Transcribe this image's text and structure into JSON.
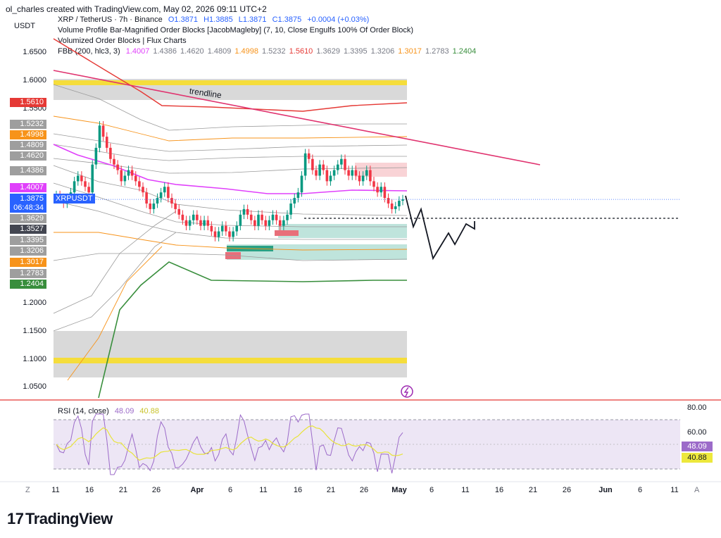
{
  "header": "ol_charles created with TradingView.com, May 02, 2026 09:11 UTC+2",
  "currency": "USDT",
  "legend": {
    "symbol": "XRP / TetherUS · 7h · Binance",
    "o": "O1.3871",
    "h": "H1.3885",
    "l": "L1.3871",
    "c": "C1.3875",
    "change": "+0.0004 (+0.03%)",
    "line2": "Volume Profile Bar-Magnified Order Blocks [JacobMagleby] (7, 10, Close Engulfs 100% Of Order Block)",
    "line3": "Volumized Order Blocks | Flux Charts",
    "fbb_label": "FBB (200, hlc3, 3)",
    "fbb_values": [
      {
        "v": "1.4007",
        "c": "#e040fb"
      },
      {
        "v": "1.4386",
        "c": "#787b86"
      },
      {
        "v": "1.4620",
        "c": "#787b86"
      },
      {
        "v": "1.4809",
        "c": "#787b86"
      },
      {
        "v": "1.4998",
        "c": "#f7931a"
      },
      {
        "v": "1.5232",
        "c": "#787b86"
      },
      {
        "v": "1.5610",
        "c": "#e53935"
      },
      {
        "v": "1.3629",
        "c": "#787b86"
      },
      {
        "v": "1.3395",
        "c": "#787b86"
      },
      {
        "v": "1.3206",
        "c": "#787b86"
      },
      {
        "v": "1.3017",
        "c": "#f7931a"
      },
      {
        "v": "1.2783",
        "c": "#787b86"
      },
      {
        "v": "1.2404",
        "c": "#388e3c"
      }
    ]
  },
  "y_axis_labels": [
    "1.6500",
    "1.6000",
    "1.5500",
    "1.2000",
    "1.1500",
    "1.1000",
    "1.0500"
  ],
  "price_tags": [
    {
      "v": "1.5610",
      "bg": "#e53935",
      "fg": "#ffffff"
    },
    {
      "v": "1.5232",
      "bg": "#9e9e9e",
      "fg": "#ffffff"
    },
    {
      "v": "1.4998",
      "bg": "#f7931a",
      "fg": "#ffffff"
    },
    {
      "v": "1.4809",
      "bg": "#9e9e9e",
      "fg": "#ffffff"
    },
    {
      "v": "1.4620",
      "bg": "#9e9e9e",
      "fg": "#ffffff"
    },
    {
      "v": "1.4386",
      "bg": "#9e9e9e",
      "fg": "#ffffff"
    },
    {
      "v": "1.4007",
      "bg": "#e040fb",
      "fg": "#ffffff"
    },
    {
      "v": "1.3629",
      "bg": "#9e9e9e",
      "fg": "#ffffff"
    },
    {
      "v": "1.3527",
      "bg": "#434651",
      "fg": "#ffffff"
    },
    {
      "v": "1.3395",
      "bg": "#9e9e9e",
      "fg": "#ffffff"
    },
    {
      "v": "1.3206",
      "bg": "#9e9e9e",
      "fg": "#ffffff"
    },
    {
      "v": "1.3017",
      "bg": "#f7931a",
      "fg": "#ffffff"
    },
    {
      "v": "1.2783",
      "bg": "#9e9e9e",
      "fg": "#ffffff"
    },
    {
      "v": "1.2404",
      "bg": "#388e3c",
      "fg": "#ffffff"
    }
  ],
  "last_price": {
    "v": "1.3875",
    "countdown": "06:48:34",
    "symbol": "XRPUSDT"
  },
  "trendline_label": "trendline",
  "x_axis": {
    "ticks": [
      {
        "t": "11",
        "x": 79
      },
      {
        "t": "16",
        "x": 127
      },
      {
        "t": "21",
        "x": 175
      },
      {
        "t": "26",
        "x": 222
      },
      {
        "t": "Apr",
        "x": 280,
        "bold": true
      },
      {
        "t": "6",
        "x": 327
      },
      {
        "t": "11",
        "x": 374
      },
      {
        "t": "16",
        "x": 423
      },
      {
        "t": "21",
        "x": 470
      },
      {
        "t": "26",
        "x": 517
      },
      {
        "t": "May",
        "x": 567,
        "bold": true
      },
      {
        "t": "6",
        "x": 613
      },
      {
        "t": "11",
        "x": 661
      },
      {
        "t": "16",
        "x": 709
      },
      {
        "t": "21",
        "x": 757
      },
      {
        "t": "26",
        "x": 805
      },
      {
        "t": "Jun",
        "x": 860,
        "bold": true
      },
      {
        "t": "6",
        "x": 909
      },
      {
        "t": "11",
        "x": 958
      }
    ],
    "left_btn": "Z",
    "right_btn": "A"
  },
  "rsi": {
    "label": "RSI (14, close)",
    "value": "48.09",
    "ma": "40.88",
    "levels": [
      "80.00",
      "60.00"
    ]
  },
  "footer": "TradingView",
  "colors": {
    "rsi": "#9c6bc9",
    "rsi_ma": "#e8e33a",
    "up": "#089981",
    "down": "#f23645",
    "trend": "#e0336f",
    "fbb_mid": "#e040fb"
  },
  "chart_data": {
    "type": "line",
    "title": "XRP / TetherUS · 7h · Binance",
    "ylim": [
      1.03,
      1.67
    ],
    "series": [
      {
        "name": "XRPUSDT",
        "close_samples": [
          1.4,
          1.43,
          1.52,
          1.45,
          1.42,
          1.39,
          1.37,
          1.36,
          1.35,
          1.34,
          1.33,
          1.35,
          1.37,
          1.4,
          1.47,
          1.44,
          1.45,
          1.44,
          1.41,
          1.39,
          1.3875
        ]
      }
    ],
    "last": 1.3875
  }
}
